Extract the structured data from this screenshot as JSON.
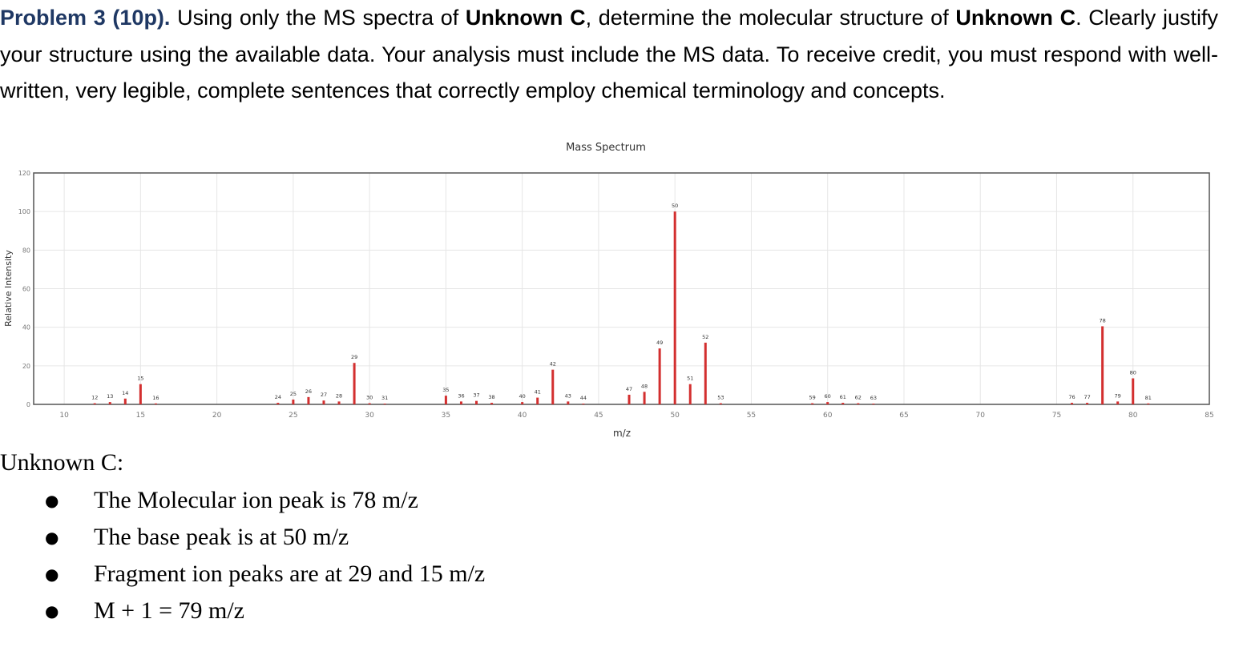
{
  "problem": {
    "heading": "Problem 3 (10p).",
    "text_1": " Using only the MS spectra of ",
    "bold_1": "Unknown C",
    "text_2": ", determine the molecular structure of ",
    "bold_2": "Unknown C",
    "text_3": ". Clearly justify your structure using the available data. Your analysis must include the MS data. To receive credit, you must respond with well-written, very legible, complete sentences that correctly employ chemical terminology and concepts."
  },
  "chart_data": {
    "type": "bar",
    "title": "Mass Spectrum",
    "xlabel": "m/z",
    "ylabel": "Relative Intensity",
    "xlim": [
      8,
      85
    ],
    "ylim": [
      0,
      120
    ],
    "xticks": [
      10,
      15,
      20,
      25,
      30,
      35,
      40,
      45,
      50,
      55,
      60,
      65,
      70,
      75,
      80,
      85
    ],
    "yticks": [
      0,
      20,
      40,
      60,
      80,
      100,
      120
    ],
    "grid": true,
    "bar_color": "#d32f2f",
    "peaks": [
      {
        "mz": 12,
        "intensity": 0.6
      },
      {
        "mz": 13,
        "intensity": 1.2
      },
      {
        "mz": 14,
        "intensity": 3
      },
      {
        "mz": 15,
        "intensity": 10.5
      },
      {
        "mz": 16,
        "intensity": 0.5
      },
      {
        "mz": 24,
        "intensity": 0.8
      },
      {
        "mz": 25,
        "intensity": 2.5
      },
      {
        "mz": 26,
        "intensity": 3.8
      },
      {
        "mz": 27,
        "intensity": 2
      },
      {
        "mz": 28,
        "intensity": 1.5
      },
      {
        "mz": 29,
        "intensity": 21.5
      },
      {
        "mz": 30,
        "intensity": 0.6
      },
      {
        "mz": 31,
        "intensity": 0.4
      },
      {
        "mz": 35,
        "intensity": 4.5
      },
      {
        "mz": 36,
        "intensity": 1.5
      },
      {
        "mz": 37,
        "intensity": 1.8
      },
      {
        "mz": 38,
        "intensity": 0.8
      },
      {
        "mz": 40,
        "intensity": 1.2
      },
      {
        "mz": 41,
        "intensity": 3.5
      },
      {
        "mz": 42,
        "intensity": 18
      },
      {
        "mz": 43,
        "intensity": 1.5
      },
      {
        "mz": 44,
        "intensity": 0.4
      },
      {
        "mz": 47,
        "intensity": 5
      },
      {
        "mz": 48,
        "intensity": 6.5
      },
      {
        "mz": 49,
        "intensity": 29
      },
      {
        "mz": 50,
        "intensity": 100
      },
      {
        "mz": 51,
        "intensity": 10.5
      },
      {
        "mz": 52,
        "intensity": 32
      },
      {
        "mz": 53,
        "intensity": 0.6
      },
      {
        "mz": 59,
        "intensity": 0.6
      },
      {
        "mz": 60,
        "intensity": 1.2
      },
      {
        "mz": 61,
        "intensity": 0.8
      },
      {
        "mz": 62,
        "intensity": 0.6
      },
      {
        "mz": 63,
        "intensity": 0.4
      },
      {
        "mz": 76,
        "intensity": 0.8
      },
      {
        "mz": 77,
        "intensity": 0.8
      },
      {
        "mz": 78,
        "intensity": 40.5
      },
      {
        "mz": 79,
        "intensity": 1.5
      },
      {
        "mz": 80,
        "intensity": 13.5
      },
      {
        "mz": 81,
        "intensity": 0.5
      }
    ]
  },
  "unknown": {
    "title": "Unknown C:",
    "bullet_char": "●",
    "items": [
      "The Molecular ion peak is 78 m/z",
      " The base peak is at 50 m/z",
      "Fragment ion peaks are at 29 and 15 m/z",
      "M + 1 = 79 m/z"
    ]
  }
}
